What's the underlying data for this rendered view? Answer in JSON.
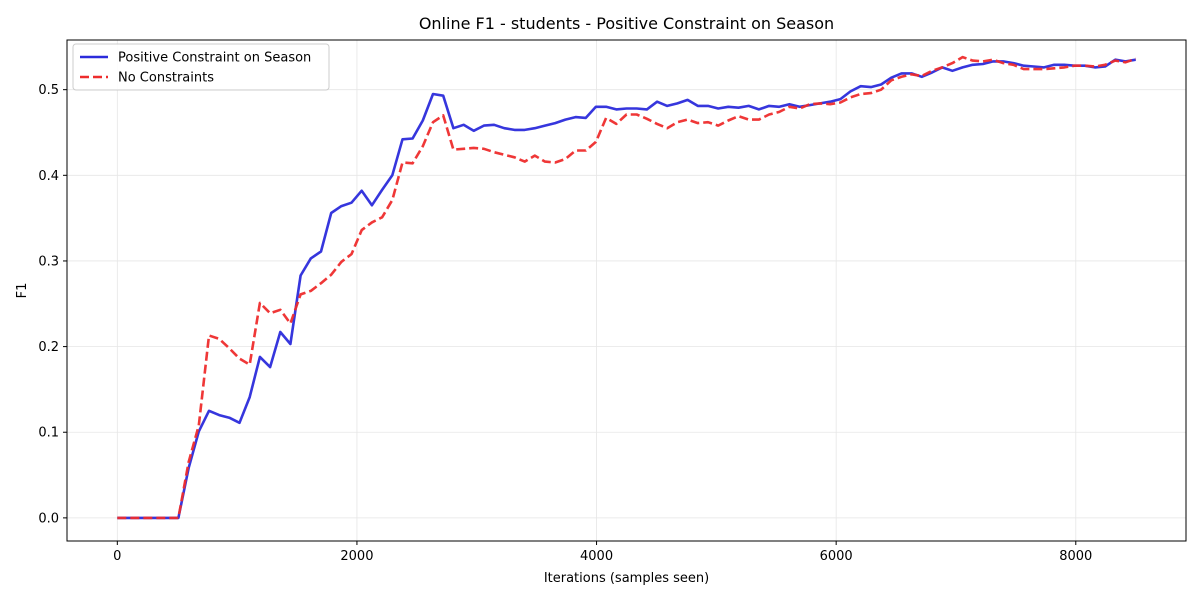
{
  "chart_data": {
    "type": "line",
    "title": "Online F1 - students - Positive Constraint on Season",
    "xlabel": "Iterations (samples seen)",
    "ylabel": "F1",
    "xlim": [
      -420,
      8920
    ],
    "ylim": [
      -0.027,
      0.558
    ],
    "xticks": [
      0,
      2000,
      4000,
      6000,
      8000
    ],
    "xtick_labels": [
      "0",
      "2000",
      "4000",
      "6000",
      "8000"
    ],
    "yticks": [
      0.0,
      0.1,
      0.2,
      0.3,
      0.4,
      0.5
    ],
    "ytick_labels": [
      "0.0",
      "0.1",
      "0.2",
      "0.3",
      "0.4",
      "0.5"
    ],
    "grid": true,
    "legend_position": "upper-left",
    "series": [
      {
        "name": "Positive Constraint on Season",
        "color": "#2b2bdb",
        "style": "solid",
        "x": [
          0,
          85,
          170,
          255,
          340,
          425,
          510,
          595,
          680,
          765,
          850,
          935,
          1020,
          1105,
          1190,
          1275,
          1360,
          1445,
          1530,
          1615,
          1700,
          1785,
          1870,
          1955,
          2040,
          2125,
          2210,
          2295,
          2380,
          2465,
          2550,
          2635,
          2720,
          2805,
          2890,
          2975,
          3060,
          3145,
          3230,
          3315,
          3400,
          3485,
          3570,
          3655,
          3740,
          3825,
          3910,
          3995,
          4080,
          4165,
          4250,
          4335,
          4420,
          4505,
          4590,
          4675,
          4760,
          4845,
          4930,
          5015,
          5100,
          5185,
          5270,
          5355,
          5440,
          5525,
          5610,
          5695,
          5780,
          5865,
          5950,
          6035,
          6120,
          6205,
          6290,
          6375,
          6460,
          6545,
          6630,
          6715,
          6800,
          6885,
          6970,
          7055,
          7140,
          7225,
          7310,
          7395,
          7480,
          7565,
          7650,
          7735,
          7820,
          7905,
          7990,
          8075,
          8160,
          8245,
          8330,
          8415,
          8500
        ],
        "y": [
          0,
          0,
          0,
          0,
          0,
          0,
          0,
          0.058,
          0.101,
          0.125,
          0.12,
          0.117,
          0.111,
          0.141,
          0.188,
          0.176,
          0.217,
          0.203,
          0.283,
          0.303,
          0.311,
          0.356,
          0.364,
          0.368,
          0.382,
          0.365,
          0.383,
          0.4,
          0.442,
          0.443,
          0.464,
          0.495,
          0.493,
          0.455,
          0.459,
          0.452,
          0.458,
          0.459,
          0.455,
          0.453,
          0.453,
          0.455,
          0.458,
          0.461,
          0.465,
          0.468,
          0.467,
          0.48,
          0.48,
          0.477,
          0.478,
          0.478,
          0.477,
          0.486,
          0.481,
          0.484,
          0.488,
          0.481,
          0.481,
          0.478,
          0.48,
          0.479,
          0.481,
          0.477,
          0.481,
          0.48,
          0.483,
          0.48,
          0.482,
          0.484,
          0.486,
          0.489,
          0.498,
          0.504,
          0.503,
          0.506,
          0.514,
          0.519,
          0.519,
          0.515,
          0.52,
          0.526,
          0.522,
          0.526,
          0.529,
          0.53,
          0.533,
          0.533,
          0.531,
          0.528,
          0.527,
          0.526,
          0.529,
          0.529,
          0.528,
          0.528,
          0.526,
          0.527,
          0.535,
          0.533,
          0.535
        ]
      },
      {
        "name": "No Constraints",
        "color": "#ee2c2c",
        "style": "dashed",
        "x": [
          0,
          85,
          170,
          255,
          340,
          425,
          510,
          595,
          680,
          765,
          850,
          935,
          1020,
          1105,
          1190,
          1275,
          1360,
          1445,
          1530,
          1615,
          1700,
          1785,
          1870,
          1955,
          2040,
          2125,
          2210,
          2295,
          2380,
          2465,
          2550,
          2635,
          2720,
          2805,
          2890,
          2975,
          3060,
          3145,
          3230,
          3315,
          3400,
          3485,
          3570,
          3655,
          3740,
          3825,
          3910,
          3995,
          4080,
          4165,
          4250,
          4335,
          4420,
          4505,
          4590,
          4675,
          4760,
          4845,
          4930,
          5015,
          5100,
          5185,
          5270,
          5355,
          5440,
          5525,
          5610,
          5695,
          5780,
          5865,
          5950,
          6035,
          6120,
          6205,
          6290,
          6375,
          6460,
          6545,
          6630,
          6715,
          6800,
          6885,
          6970,
          7055,
          7140,
          7225,
          7310,
          7395,
          7480,
          7565,
          7650,
          7735,
          7820,
          7905,
          7990,
          8075,
          8160,
          8245,
          8330,
          8415,
          8500
        ],
        "y": [
          0,
          0,
          0,
          0,
          0,
          0,
          0,
          0.065,
          0.108,
          0.213,
          0.209,
          0.198,
          0.186,
          0.179,
          0.251,
          0.239,
          0.243,
          0.227,
          0.261,
          0.265,
          0.274,
          0.284,
          0.299,
          0.308,
          0.336,
          0.345,
          0.351,
          0.371,
          0.415,
          0.414,
          0.434,
          0.462,
          0.47,
          0.43,
          0.431,
          0.432,
          0.431,
          0.427,
          0.424,
          0.421,
          0.416,
          0.423,
          0.416,
          0.415,
          0.419,
          0.429,
          0.429,
          0.439,
          0.467,
          0.46,
          0.471,
          0.471,
          0.466,
          0.46,
          0.455,
          0.462,
          0.465,
          0.461,
          0.462,
          0.458,
          0.464,
          0.469,
          0.465,
          0.465,
          0.471,
          0.474,
          0.48,
          0.478,
          0.483,
          0.484,
          0.483,
          0.485,
          0.491,
          0.495,
          0.496,
          0.5,
          0.511,
          0.515,
          0.518,
          0.516,
          0.522,
          0.526,
          0.531,
          0.538,
          0.534,
          0.533,
          0.535,
          0.531,
          0.529,
          0.524,
          0.524,
          0.524,
          0.525,
          0.526,
          0.528,
          0.528,
          0.527,
          0.529,
          0.534,
          0.532,
          0.536
        ]
      }
    ]
  }
}
